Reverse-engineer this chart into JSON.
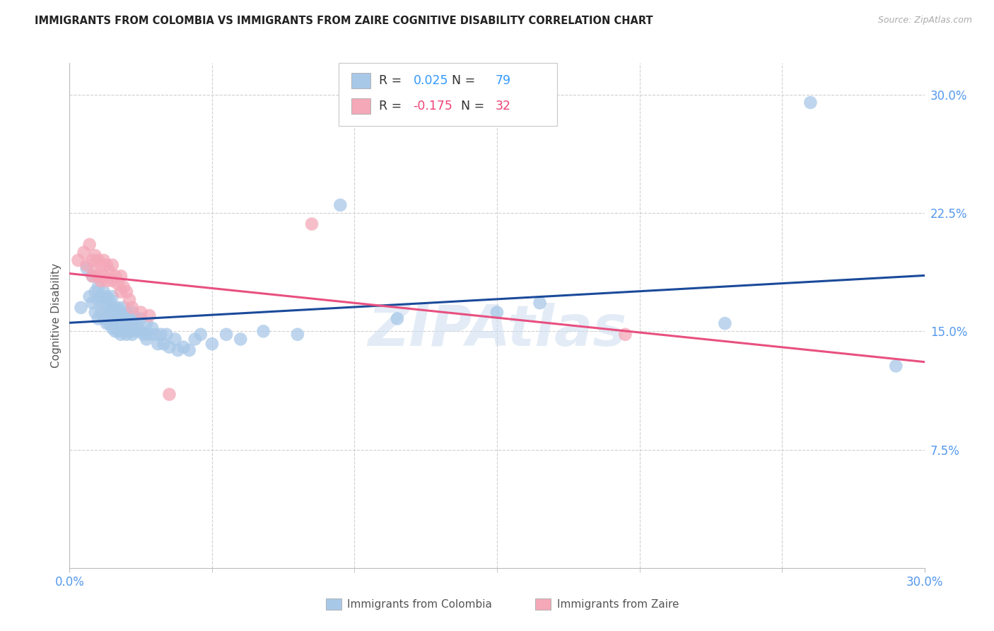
{
  "title": "IMMIGRANTS FROM COLOMBIA VS IMMIGRANTS FROM ZAIRE COGNITIVE DISABILITY CORRELATION CHART",
  "source": "Source: ZipAtlas.com",
  "ylabel": "Cognitive Disability",
  "xlim": [
    0.0,
    0.3
  ],
  "ylim": [
    0.0,
    0.32
  ],
  "yticks": [
    0.075,
    0.15,
    0.225,
    0.3
  ],
  "ytick_labels": [
    "7.5%",
    "15.0%",
    "22.5%",
    "30.0%"
  ],
  "xtick_show": [
    0.0,
    0.3
  ],
  "xtick_labels_show": [
    "0.0%",
    "30.0%"
  ],
  "grid_color": "#d0d0d0",
  "background_color": "#ffffff",
  "colombia_color": "#a8c8e8",
  "zaire_color": "#f4a8b8",
  "colombia_line_color": "#1a4a9a",
  "zaire_line_color": "#e85080",
  "colombia_R": 0.025,
  "colombia_N": 79,
  "zaire_R": -0.175,
  "zaire_N": 32,
  "watermark": "ZIPAtlas",
  "colombia_x": [
    0.004,
    0.006,
    0.007,
    0.008,
    0.008,
    0.009,
    0.009,
    0.01,
    0.01,
    0.01,
    0.011,
    0.011,
    0.012,
    0.012,
    0.012,
    0.013,
    0.013,
    0.013,
    0.014,
    0.014,
    0.014,
    0.015,
    0.015,
    0.015,
    0.015,
    0.016,
    0.016,
    0.016,
    0.017,
    0.017,
    0.017,
    0.018,
    0.018,
    0.018,
    0.019,
    0.019,
    0.019,
    0.02,
    0.02,
    0.02,
    0.021,
    0.021,
    0.022,
    0.022,
    0.022,
    0.023,
    0.023,
    0.024,
    0.025,
    0.025,
    0.026,
    0.027,
    0.027,
    0.028,
    0.029,
    0.03,
    0.031,
    0.032,
    0.033,
    0.034,
    0.035,
    0.037,
    0.038,
    0.04,
    0.042,
    0.044,
    0.046,
    0.05,
    0.055,
    0.06,
    0.068,
    0.08,
    0.095,
    0.115,
    0.15,
    0.165,
    0.23,
    0.26,
    0.29
  ],
  "colombia_y": [
    0.165,
    0.19,
    0.172,
    0.168,
    0.185,
    0.162,
    0.175,
    0.158,
    0.17,
    0.178,
    0.162,
    0.172,
    0.158,
    0.168,
    0.175,
    0.155,
    0.165,
    0.172,
    0.155,
    0.162,
    0.17,
    0.152,
    0.158,
    0.165,
    0.172,
    0.15,
    0.158,
    0.165,
    0.15,
    0.158,
    0.165,
    0.148,
    0.155,
    0.162,
    0.15,
    0.158,
    0.165,
    0.148,
    0.155,
    0.162,
    0.15,
    0.158,
    0.148,
    0.155,
    0.162,
    0.15,
    0.158,
    0.152,
    0.15,
    0.158,
    0.148,
    0.145,
    0.155,
    0.148,
    0.152,
    0.148,
    0.142,
    0.148,
    0.142,
    0.148,
    0.14,
    0.145,
    0.138,
    0.14,
    0.138,
    0.145,
    0.148,
    0.142,
    0.148,
    0.145,
    0.15,
    0.148,
    0.23,
    0.158,
    0.162,
    0.168,
    0.155,
    0.295,
    0.128
  ],
  "zaire_x": [
    0.003,
    0.005,
    0.006,
    0.007,
    0.008,
    0.008,
    0.009,
    0.009,
    0.01,
    0.01,
    0.011,
    0.011,
    0.012,
    0.012,
    0.013,
    0.013,
    0.014,
    0.015,
    0.015,
    0.016,
    0.017,
    0.018,
    0.018,
    0.019,
    0.02,
    0.021,
    0.022,
    0.025,
    0.028,
    0.035,
    0.085,
    0.195
  ],
  "zaire_y": [
    0.195,
    0.2,
    0.192,
    0.205,
    0.185,
    0.195,
    0.188,
    0.198,
    0.185,
    0.195,
    0.182,
    0.192,
    0.185,
    0.195,
    0.182,
    0.192,
    0.188,
    0.182,
    0.192,
    0.185,
    0.18,
    0.175,
    0.185,
    0.178,
    0.175,
    0.17,
    0.165,
    0.162,
    0.16,
    0.11,
    0.218,
    0.148
  ]
}
